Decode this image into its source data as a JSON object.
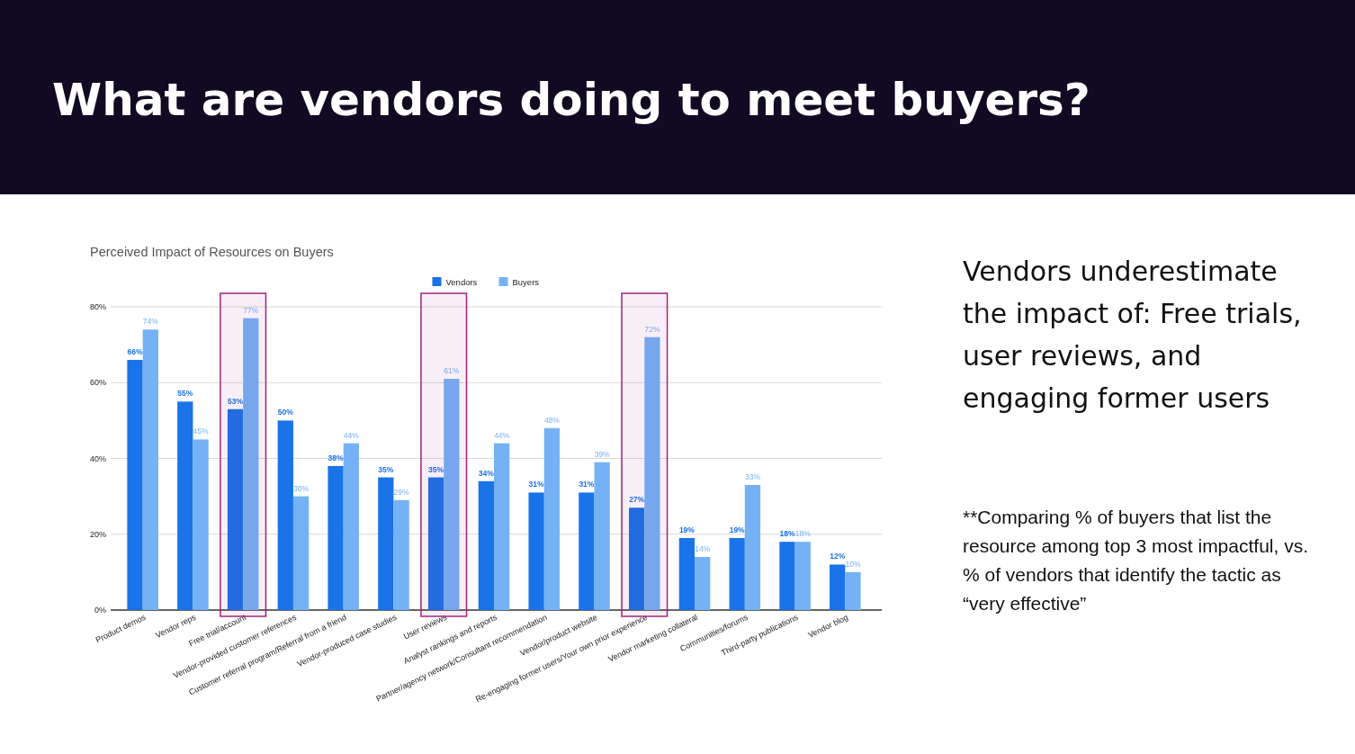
{
  "chart_data": {
    "type": "bar",
    "title": "What are vendors doing to meet buyers?",
    "subtitle": "Perceived Impact of Resources on Buyers",
    "categories": [
      "Product demos",
      "Vendor reps",
      "Free trial/account",
      "Vendor-provided customer references",
      "Customer referral program/Referral from a friend",
      "Vendor-produced case studies",
      "User reviews",
      "Analyst rankings and reports",
      "Partner/agency network/Consultant recommendation",
      "Vendor/product website",
      "Re-engaging former users/Your own prior experience",
      "Vendor marketing collateral",
      "Communities/forums",
      "Third-party publications",
      "Vendor blog"
    ],
    "series": [
      {
        "name": "Vendors",
        "color": "#1a73e8",
        "values": [
          66,
          55,
          53,
          50,
          38,
          35,
          35,
          34,
          31,
          31,
          27,
          19,
          19,
          18,
          12
        ],
        "value_labels": [
          "66%",
          "55%",
          "53%",
          "50%",
          "38%",
          "35%",
          "35%",
          "34%",
          "31%",
          "31%",
          "27%",
          "19%",
          "19%",
          "18%",
          "12%"
        ]
      },
      {
        "name": "Buyers",
        "color": "#74b2f5",
        "values": [
          74,
          45,
          77,
          30,
          44,
          29,
          61,
          44,
          48,
          39,
          72,
          14,
          33,
          18,
          10
        ],
        "value_labels": [
          "74%",
          "45%",
          "77%",
          "30%",
          "44%",
          "29%",
          "61%",
          "44%",
          "48%",
          "39%",
          "72%",
          "14%",
          "33%",
          "18%",
          "10%"
        ]
      }
    ],
    "ylim": [
      0,
      80
    ],
    "yticks": [
      {
        "value": 0,
        "label": "0%"
      },
      {
        "value": 20,
        "label": "20%"
      },
      {
        "value": 40,
        "label": "40%"
      },
      {
        "value": 60,
        "label": "60%"
      },
      {
        "value": 80,
        "label": "80%"
      }
    ],
    "grid": "y",
    "legend": "top",
    "bands": [
      {
        "axis": "x",
        "from": "Free trial/account",
        "to": "Free trial/account",
        "color": "#a2237a"
      },
      {
        "axis": "x",
        "from": "User reviews",
        "to": "User reviews",
        "color": "#a2237a"
      },
      {
        "axis": "x",
        "from": "Re-engaging former users/Your own prior experience",
        "to": "Re-engaging former users/Your own prior experience",
        "color": "#a2237a"
      }
    ],
    "annotations": [
      "Vendors underestimate the impact of: Free trials, user reviews, and engaging former users",
      "**Comparing % of buyers that list the resource among top 3 most impactful, vs. % of vendors that identify the tactic as “very effective”"
    ]
  }
}
